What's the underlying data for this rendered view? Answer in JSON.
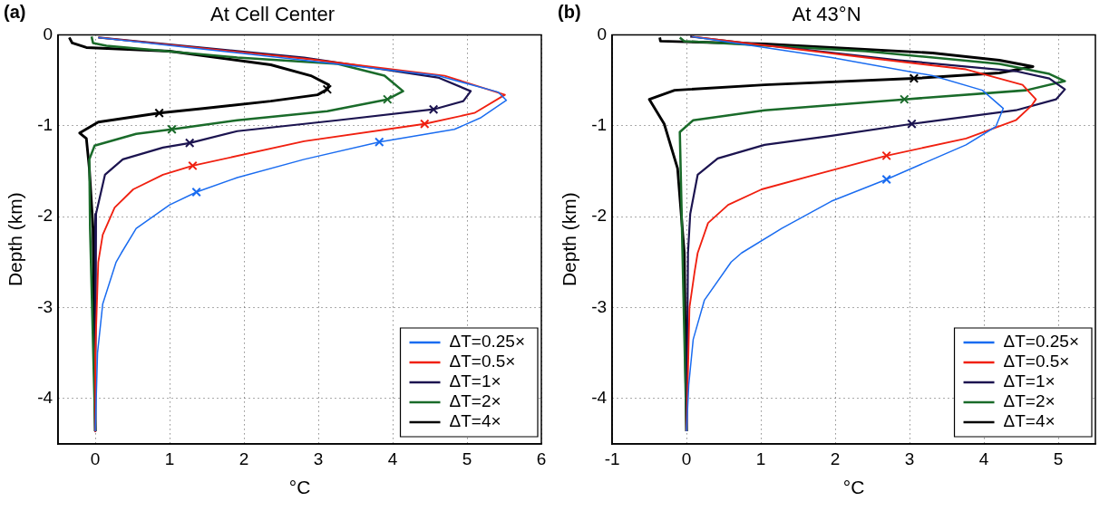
{
  "chart_data": [
    {
      "type": "line",
      "title": "At Cell Center",
      "xlabel": "°C",
      "ylabel": "Depth (km)",
      "annotations": [
        "(a)"
      ],
      "xlim": [
        -0.5,
        6
      ],
      "xticks": [
        0,
        1,
        2,
        3,
        4,
        5,
        6
      ],
      "ylim": [
        -4.5,
        0
      ],
      "yticks": [
        0,
        -1,
        -2,
        -3,
        -4
      ],
      "grid": true,
      "legend": "bottom right",
      "marker": "none",
      "series": [
        {
          "name": "ΔT=0.25×",
          "color": "#1a6cf0",
          "x": [
            0.04,
            2.81,
            4.61,
            5.42,
            5.53,
            5.19,
            4.83,
            3.82,
            2.81,
            1.91,
            1.36,
            1.0,
            0.55,
            0.35,
            0.28,
            0.1,
            0.03,
            0
          ],
          "values": [
            -0.03,
            -0.28,
            -0.45,
            -0.63,
            -0.72,
            -0.91,
            -1.04,
            -1.18,
            -1.37,
            -1.57,
            -1.73,
            -1.87,
            -2.13,
            -2.4,
            -2.5,
            -2.96,
            -3.5,
            -4.36
          ]
        },
        {
          "name": "ΔT=0.5×",
          "color": "#f02010",
          "x": [
            0.04,
            2.9,
            4.7,
            5.51,
            5.1,
            4.43,
            2.81,
            1.31,
            0.91,
            0.51,
            0.26,
            0.1,
            0.04,
            0,
            0
          ],
          "values": [
            -0.03,
            -0.27,
            -0.45,
            -0.66,
            -0.86,
            -0.98,
            -1.17,
            -1.44,
            -1.54,
            -1.7,
            -1.9,
            -2.2,
            -2.5,
            -3.5,
            -4.36
          ]
        },
        {
          "name": "ΔT=1×",
          "color": "#1c1450",
          "x": [
            0.04,
            2.81,
            4.61,
            5.05,
            4.95,
            4.55,
            3.26,
            1.91,
            1.27,
            0.91,
            0.37,
            0.13,
            0.01,
            0
          ],
          "values": [
            -0.03,
            -0.25,
            -0.47,
            -0.62,
            -0.73,
            -0.82,
            -0.94,
            -1.06,
            -1.19,
            -1.24,
            -1.37,
            -1.54,
            -1.97,
            -4.36
          ]
        },
        {
          "name": "ΔT=2×",
          "color": "#1a6b2a",
          "x": [
            -0.05,
            -0.03,
            0.15,
            1.91,
            3.26,
            3.89,
            4.14,
            3.93,
            3.12,
            1.91,
            1.03,
            0.55,
            -0.01,
            -0.08,
            -0.07,
            0
          ],
          "values": [
            -0.02,
            -0.09,
            -0.12,
            -0.25,
            -0.32,
            -0.45,
            -0.62,
            -0.71,
            -0.84,
            -0.94,
            -1.04,
            -1.09,
            -1.22,
            -1.37,
            -2.13,
            -4.36
          ]
        },
        {
          "name": "ΔT=4×",
          "color": "#000000",
          "x": [
            -0.35,
            -0.31,
            -0.12,
            1.0,
            2.36,
            2.9,
            3.14,
            3.12,
            2.99,
            2.36,
            1.45,
            0.86,
            0.04,
            -0.21,
            -0.12,
            -0.08,
            -0.03,
            0
          ],
          "values": [
            -0.03,
            -0.09,
            -0.14,
            -0.18,
            -0.33,
            -0.45,
            -0.55,
            -0.6,
            -0.66,
            -0.73,
            -0.81,
            -0.86,
            -0.96,
            -1.08,
            -1.14,
            -1.47,
            -2.13,
            -4.36
          ]
        },
        {
          "type": "scatter",
          "marker": "cross",
          "color": "#1a6cf0",
          "x": [
            3.82,
            1.36
          ],
          "values": [
            -1.18,
            -1.73
          ]
        },
        {
          "type": "scatter",
          "marker": "cross",
          "color": "#f02010",
          "x": [
            4.43,
            1.31
          ],
          "values": [
            -0.98,
            -1.44
          ]
        },
        {
          "type": "scatter",
          "marker": "cross",
          "color": "#1c1450",
          "x": [
            4.55,
            1.27
          ],
          "values": [
            -0.82,
            -1.19
          ]
        },
        {
          "type": "scatter",
          "marker": "cross",
          "color": "#1a6b2a",
          "x": [
            3.93,
            1.03
          ],
          "values": [
            -0.71,
            -1.04
          ]
        },
        {
          "type": "scatter",
          "marker": "cross",
          "color": "#000000",
          "x": [
            3.12,
            0.86
          ],
          "values": [
            -0.6,
            -0.86
          ]
        }
      ]
    },
    {
      "type": "line",
      "title": "At 43°N",
      "xlabel": "°C",
      "ylabel": "Depth (km)",
      "annotations": [
        "(b)"
      ],
      "xlim": [
        -1,
        5.5
      ],
      "xticks": [
        -1,
        0,
        1,
        2,
        3,
        4,
        5
      ],
      "ylim": [
        -4.5,
        0
      ],
      "yticks": [
        0,
        -1,
        -2,
        -3,
        -4
      ],
      "grid": true,
      "legend": "bottom right",
      "marker": "none",
      "series": [
        {
          "name": "ΔT=0.25×",
          "color": "#1a6cf0",
          "x": [
            0.08,
            1.95,
            3.31,
            3.98,
            4.26,
            4.16,
            3.76,
            3.31,
            2.69,
            1.95,
            1.28,
            0.74,
            0.6,
            0.24,
            0.09,
            0.03,
            0
          ],
          "values": [
            -0.02,
            -0.25,
            -0.45,
            -0.61,
            -0.81,
            -1.01,
            -1.21,
            -1.37,
            -1.59,
            -1.83,
            -2.13,
            -2.4,
            -2.5,
            -2.92,
            -3.35,
            -3.85,
            -4.36
          ]
        },
        {
          "name": "ΔT=0.5×",
          "color": "#f02010",
          "x": [
            0.08,
            2.41,
            3.76,
            4.52,
            4.7,
            4.64,
            4.43,
            3.76,
            2.69,
            1.73,
            1.01,
            0.56,
            0.29,
            0.15,
            0.11,
            0.04,
            0.02,
            0
          ],
          "values": [
            -0.02,
            -0.25,
            -0.38,
            -0.55,
            -0.71,
            -0.78,
            -0.94,
            -1.14,
            -1.33,
            -1.54,
            -1.7,
            -1.87,
            -2.07,
            -2.4,
            -2.6,
            -3.0,
            -3.7,
            -4.36
          ]
        },
        {
          "name": "ΔT=1×",
          "color": "#1c1450",
          "x": [
            0.05,
            2.86,
            4.43,
            4.88,
            5.09,
            4.97,
            4.43,
            3.03,
            1.95,
            1.05,
            0.42,
            0.15,
            0.05,
            0.02,
            0
          ],
          "values": [
            -0.02,
            -0.28,
            -0.4,
            -0.48,
            -0.6,
            -0.71,
            -0.83,
            -0.98,
            -1.11,
            -1.21,
            -1.36,
            -1.54,
            -1.97,
            -2.4,
            -4.36
          ]
        },
        {
          "name": "ΔT=2×",
          "color": "#1a6b2a",
          "x": [
            -0.09,
            -0.03,
            2.41,
            4.21,
            4.88,
            5.09,
            4.57,
            2.93,
            1.05,
            0.09,
            -0.09,
            -0.07,
            0
          ],
          "values": [
            -0.03,
            -0.07,
            -0.18,
            -0.32,
            -0.43,
            -0.51,
            -0.61,
            -0.71,
            -0.83,
            -0.94,
            -1.07,
            -1.8,
            -4.36
          ]
        },
        {
          "name": "ΔT=4×",
          "color": "#000000",
          "x": [
            -0.36,
            -0.35,
            1.05,
            3.31,
            4.21,
            4.66,
            4.21,
            3.06,
            1.05,
            -0.16,
            -0.5,
            -0.3,
            -0.12,
            -0.03,
            0
          ],
          "values": [
            -0.03,
            -0.07,
            -0.1,
            -0.2,
            -0.28,
            -0.35,
            -0.42,
            -0.48,
            -0.55,
            -0.61,
            -0.71,
            -0.98,
            -1.47,
            -2.4,
            -4.36
          ]
        },
        {
          "type": "scatter",
          "marker": "cross",
          "color": "#1a6cf0",
          "x": [
            2.69
          ],
          "values": [
            -1.59
          ]
        },
        {
          "type": "scatter",
          "marker": "cross",
          "color": "#f02010",
          "x": [
            2.69
          ],
          "values": [
            -1.33
          ]
        },
        {
          "type": "scatter",
          "marker": "cross",
          "color": "#1c1450",
          "x": [
            3.03
          ],
          "values": [
            -0.98
          ]
        },
        {
          "type": "scatter",
          "marker": "cross",
          "color": "#1a6b2a",
          "x": [
            2.93
          ],
          "values": [
            -0.71
          ]
        },
        {
          "type": "scatter",
          "marker": "cross",
          "color": "#000000",
          "x": [
            3.06
          ],
          "values": [
            -0.48
          ]
        }
      ]
    }
  ]
}
